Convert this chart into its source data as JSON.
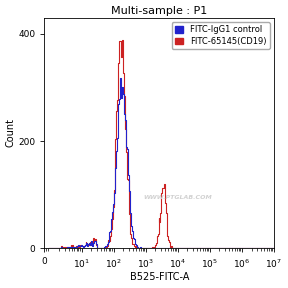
{
  "title": "Multi-sample : P1",
  "xlabel": "B525-FITC-A",
  "ylabel": "Count",
  "ylim": [
    0,
    430
  ],
  "yticks": [
    0,
    200,
    400
  ],
  "xtick_labels": [
    "0",
    "10$^1$",
    "10$^2$",
    "10$^3$",
    "10$^4$",
    "10$^5$",
    "10$^6$",
    "10$^7$"
  ],
  "xtick_positions": [
    0.7,
    10,
    100,
    1000,
    10000,
    100000,
    1000000,
    10000000
  ],
  "legend": [
    {
      "label": "FITC-IgG1 control",
      "color": "#2222cc"
    },
    {
      "label": "FITC-65145(CD19)",
      "color": "#cc2222"
    }
  ],
  "watermark": "WWW.PTGLAB.COM",
  "bg_color": "#ffffff",
  "title_fontsize": 8,
  "axis_fontsize": 7,
  "tick_fontsize": 6.5,
  "legend_fontsize": 6,
  "blue_main_mu": 180,
  "blue_main_sigma": 0.38,
  "blue_main_n": 4800,
  "blue_low_n": 200,
  "red_main_mu": 170,
  "red_main_sigma": 0.32,
  "red_main_n": 5200,
  "red_second_mu": 3500,
  "red_second_sigma": 0.22,
  "red_second_n": 1000,
  "red_low_n": 250,
  "max_count": 400,
  "n_bins": 256
}
